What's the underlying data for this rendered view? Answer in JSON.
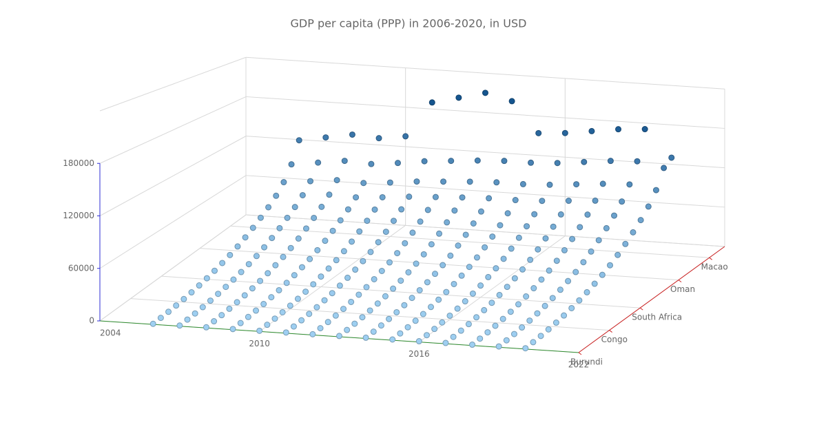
{
  "chart_data": {
    "type": "scatter3d",
    "title": "GDP per capita (PPP) in 2006-2020, in USD",
    "x": [
      2006,
      2007,
      2008,
      2009,
      2010,
      2011,
      2012,
      2013,
      2014,
      2015,
      2016,
      2017,
      2018,
      2019,
      2020
    ],
    "xlim": [
      2004,
      2022
    ],
    "xticks": [
      2004,
      2010,
      2016,
      2022
    ],
    "categories": [
      "Burundi",
      null,
      null,
      null,
      "Congo",
      null,
      null,
      null,
      "South Africa",
      null,
      null,
      null,
      null,
      "Oman",
      null,
      null,
      null,
      "Macao",
      null,
      null
    ],
    "zlim": [
      0,
      240000
    ],
    "zticks": [
      0,
      60000,
      120000,
      180000
    ],
    "colorscale": [
      "#9fd0f2",
      "#15558f"
    ],
    "axis_colors": {
      "x": "#2e8b2e",
      "y": "#cc2222",
      "z": "#2b2bd6"
    },
    "values": [
      [
        680,
        1100,
        1700,
        2550,
        3650,
        5100,
        6800,
        8900,
        11500,
        14450,
        17850,
        22100,
        27200,
        33150,
        39950,
        47600,
        56950,
        69700,
        89250,
        119000
      ],
      [
        720,
        1170,
        1800,
        2700,
        3870,
        5400,
        7200,
        9450,
        12150,
        15300,
        18900,
        23400,
        28800,
        35100,
        42300,
        50400,
        60300,
        73800,
        94500,
        126000
      ],
      [
        760,
        1240,
        1900,
        2850,
        4090,
        5700,
        7600,
        9980,
        12830,
        16150,
        19950,
        24700,
        30400,
        37050,
        44650,
        53200,
        63650,
        77900,
        99750,
        133000
      ],
      [
        740,
        1210,
        1860,
        2790,
        4000,
        5580,
        7440,
        9770,
        12560,
        15810,
        19530,
        24180,
        29760,
        36270,
        43710,
        52080,
        62310,
        76260,
        97650,
        130200
      ],
      [
        780,
        1260,
        1940,
        2910,
        4170,
        5820,
        7760,
        10190,
        13100,
        16490,
        20370,
        25220,
        31040,
        37830,
        45590,
        54320,
        64990,
        79540,
        101850,
        135800
      ],
      [
        820,
        1330,
        2040,
        3060,
        4390,
        6120,
        8160,
        10710,
        13770,
        17340,
        21420,
        26520,
        32640,
        39780,
        47940,
        57120,
        68340,
        83640,
        107100,
        190000
      ],
      [
        840,
        1370,
        2100,
        3150,
        4520,
        6300,
        8400,
        11030,
        14180,
        17850,
        22050,
        27300,
        33600,
        40950,
        49350,
        58800,
        70350,
        86100,
        110250,
        200000
      ],
      [
        860,
        1400,
        2160,
        3240,
        4640,
        6480,
        8640,
        11340,
        14580,
        18360,
        22680,
        28080,
        34560,
        42120,
        50760,
        60480,
        72360,
        88560,
        113400,
        210000
      ],
      [
        880,
        1430,
        2200,
        3300,
        4730,
        6600,
        8800,
        11550,
        14850,
        18700,
        23100,
        28600,
        35200,
        42900,
        51700,
        61600,
        73700,
        90200,
        115500,
        200000
      ],
      [
        870,
        1420,
        2180,
        3280,
        4700,
        6560,
        8760,
        11500,
        14800,
        18650,
        23050,
        28550,
        35150,
        42850,
        51650,
        61550,
        73650,
        90150,
        115400,
        154000
      ],
      [
        900,
        1460,
        2240,
        3360,
        4820,
        6720,
        8960,
        11760,
        15120,
        19040,
        23520,
        29120,
        35840,
        43680,
        52640,
        62720,
        75040,
        91840,
        117600,
        156800
      ],
      [
        930,
        1510,
        2320,
        3480,
        4990,
        6960,
        9280,
        12180,
        15660,
        19720,
        24360,
        30160,
        37120,
        45240,
        54520,
        64960,
        77720,
        95120,
        121800,
        162400
      ],
      [
        960,
        1560,
        2400,
        3600,
        5160,
        7200,
        9600,
        12600,
        16200,
        20400,
        25200,
        31200,
        38400,
        46800,
        56400,
        67200,
        80400,
        98400,
        126000,
        168000
      ],
      [
        980,
        1590,
        2440,
        3660,
        5250,
        7320,
        9760,
        12810,
        16470,
        20740,
        25620,
        31720,
        39040,
        47580,
        57340,
        68320,
        81740,
        100040,
        128100,
        170800
      ],
      [
        920,
        1500,
        2300,
        3450,
        4950,
        6900,
        9200,
        12080,
        15530,
        19550,
        24150,
        29900,
        36800,
        44850,
        54050,
        64400,
        77050,
        94300,
        120750,
        130000
      ]
    ]
  }
}
